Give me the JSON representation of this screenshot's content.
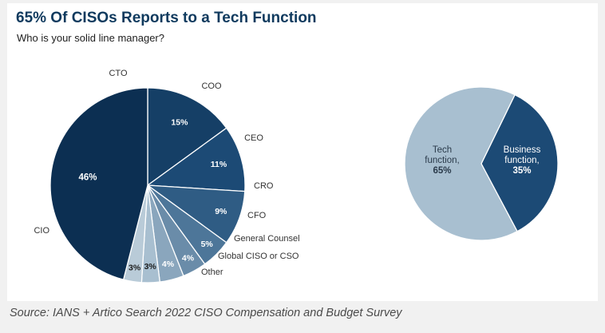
{
  "title": "65% Of CISOs Reports to a Tech Function",
  "subtitle": "Who is your solid line manager?",
  "source": "Source: IANS + Artico Search 2022 CISO Compensation and Budget Survey",
  "colors": {
    "navy": "#0c2f52",
    "dark": "#153f66",
    "mid1": "#1c4a75",
    "mid2": "#2f5c84",
    "mid3": "#4d7699",
    "mid4": "#6a8ca9",
    "light1": "#8aa6bd",
    "light2": "#a8bfd0",
    "light3": "#b9cbd8",
    "text": "#333333"
  },
  "chart_data": [
    {
      "type": "pie",
      "title": "Who is your solid line manager?",
      "categories": [
        "CIO",
        "CTO",
        "COO",
        "CEO",
        "CRO",
        "CFO",
        "General Counsel",
        "Global CISO or CSO",
        "Other"
      ],
      "values": [
        46,
        15,
        11,
        9,
        5,
        4,
        4,
        3,
        3
      ],
      "labels": [
        "46%",
        "15%",
        "11%",
        "9%",
        "5%",
        "4%",
        "4%",
        "3%",
        "3%"
      ]
    },
    {
      "type": "pie",
      "categories": [
        "Tech function",
        "Business function"
      ],
      "category_lines": [
        [
          "Tech",
          "function,"
        ],
        [
          "Business",
          "function,"
        ]
      ],
      "values": [
        65,
        35
      ],
      "labels": [
        "65%",
        "35%"
      ]
    }
  ]
}
